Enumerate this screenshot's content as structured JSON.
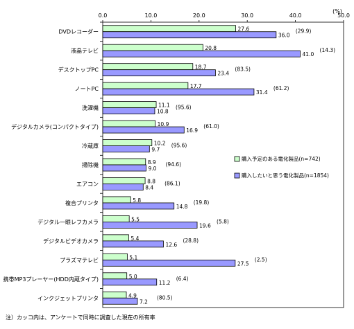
{
  "chart_data": {
    "type": "bar",
    "orientation": "horizontal",
    "unit_label": "(%)",
    "xlim": [
      0,
      50
    ],
    "xticks": [
      "0.0",
      "10.0",
      "20.0",
      "30.0",
      "40.0",
      "50.0"
    ],
    "grid": false,
    "legend_position": "right",
    "categories": [
      "DVDレコーダー",
      "液晶テレビ",
      "デスクトップPC",
      "ノートPC",
      "洗濯機",
      "デジタルカメラ(コンパクトタイプ)",
      "冷蔵庫",
      "掃除機",
      "エアコン",
      "複合プリンタ",
      "デジタル一眼レフカメラ",
      "デジタルビデオカメラ",
      "プラズマテレビ",
      "携帯MP3プレーヤー(HDD内蔵タイプ)",
      "インクジェットプリンタ"
    ],
    "series": [
      {
        "name": "購入予定のある電化製品(n=742)",
        "color": "#ccffcc",
        "values": [
          27.6,
          20.8,
          18.7,
          17.7,
          11.1,
          10.9,
          10.2,
          8.9,
          8.8,
          5.8,
          5.5,
          5.4,
          5.1,
          5.0,
          4.9
        ],
        "labels": [
          "27.6",
          "20.8",
          "18.7",
          "17.7",
          "11.1",
          "10.9",
          "10.2",
          "8.9",
          "8.8",
          "5.8",
          "5.5",
          "5.4",
          "5.1",
          "5.0",
          "4.9"
        ]
      },
      {
        "name": "購入したいと思う電化製品(n=1854)",
        "color": "#9999ff",
        "values": [
          36.0,
          41.0,
          23.4,
          31.4,
          10.8,
          16.9,
          9.7,
          9.0,
          8.4,
          14.8,
          19.6,
          12.6,
          27.5,
          11.2,
          7.2
        ],
        "labels": [
          "36.0",
          "41.0",
          "23.4",
          "31.4",
          "10.8",
          "16.9",
          "9.7",
          "9.0",
          "8.4",
          "14.8",
          "19.6",
          "12.6",
          "27.5",
          "11.2",
          "7.2"
        ]
      }
    ],
    "ownership_rates": [
      "(29.9)",
      "(14.3)",
      "(83.5)",
      "(61.2)",
      "(95.6)",
      "(61.0)",
      "(95.6)",
      "(94.6)",
      "(86.1)",
      "(19.8)",
      "(5.8)",
      "(28.8)",
      "(2.5)",
      "(6.4)",
      "(80.5)"
    ]
  },
  "note": "注）カッコ内は、アンケートで同時に調査した現在の所有率"
}
